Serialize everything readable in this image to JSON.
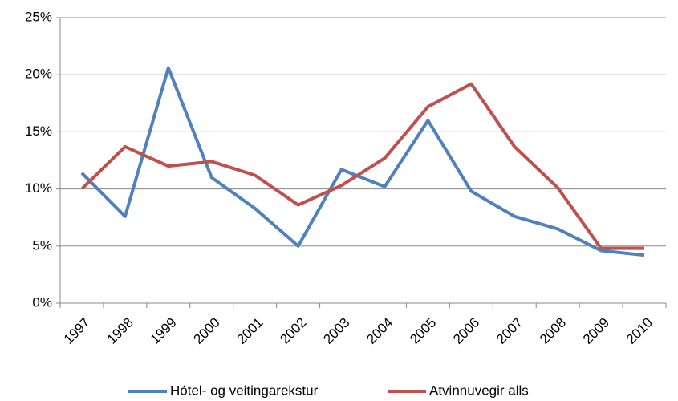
{
  "chart_data": {
    "type": "line",
    "categories": [
      "1997",
      "1998",
      "1999",
      "2000",
      "2001",
      "2002",
      "2003",
      "2004",
      "2005",
      "2006",
      "2007",
      "2008",
      "2009",
      "2010"
    ],
    "series": [
      {
        "name": "Hótel- og veitingarekstur",
        "color": "#4f81bd",
        "values": [
          11.4,
          7.6,
          20.6,
          11.0,
          8.3,
          5.0,
          11.7,
          10.2,
          16.0,
          9.8,
          7.6,
          6.5,
          4.6,
          4.2
        ]
      },
      {
        "name": "Atvinnuvegir alls",
        "color": "#c0504d",
        "values": [
          10.0,
          13.7,
          12.0,
          12.4,
          11.2,
          8.6,
          10.3,
          12.7,
          17.2,
          19.2,
          13.7,
          10.1,
          4.8,
          4.8
        ]
      }
    ],
    "ylim": [
      0,
      25
    ],
    "yticks": [
      {
        "value": 0,
        "label": "0%"
      },
      {
        "value": 5,
        "label": "5%"
      },
      {
        "value": 10,
        "label": "10%"
      },
      {
        "value": 15,
        "label": "15%"
      },
      {
        "value": 20,
        "label": "20%"
      },
      {
        "value": 25,
        "label": "25%"
      }
    ],
    "grid": true,
    "legend": "bottom"
  }
}
